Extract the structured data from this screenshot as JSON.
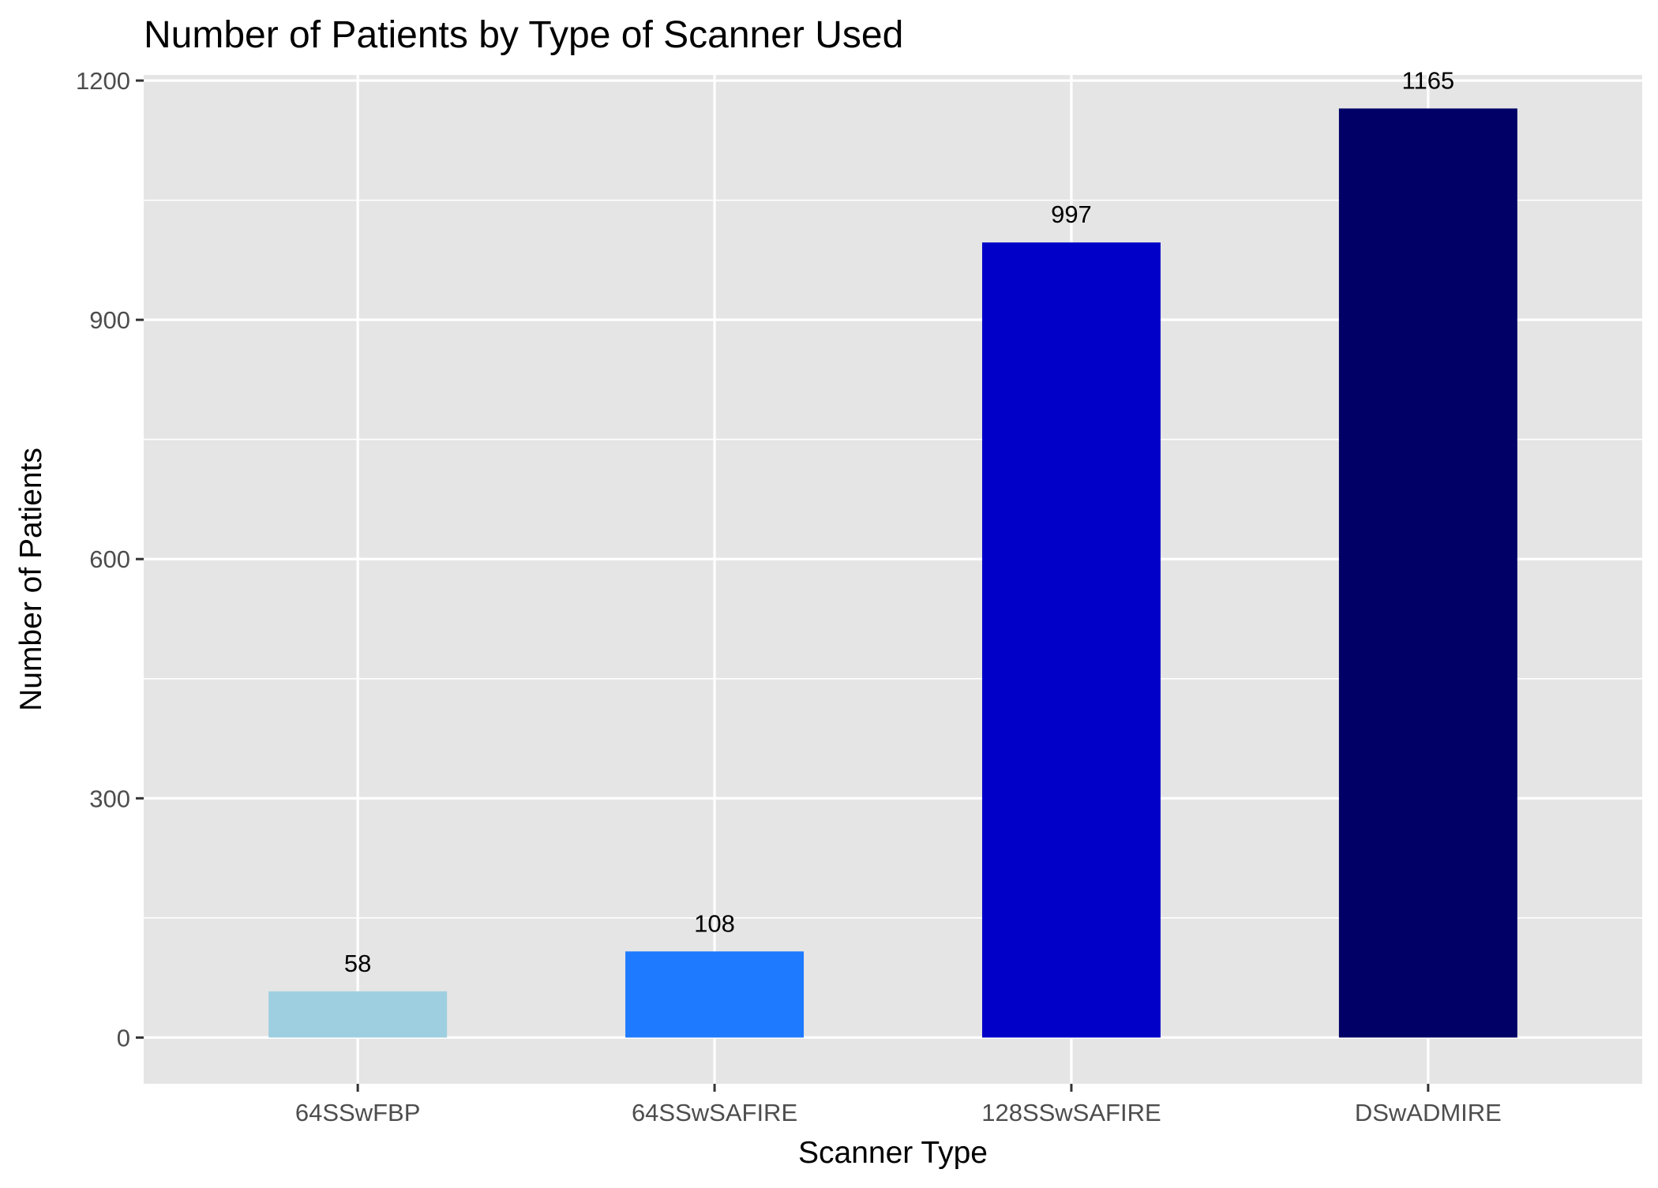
{
  "chart_data": {
    "type": "bar",
    "title": "Number of Patients by Type of Scanner Used",
    "xlabel": "Scanner Type",
    "ylabel": "Number of Patients",
    "categories": [
      "64SSwFBP",
      "64SSwSAFIRE",
      "128SSwSAFIRE",
      "DSwADMIRE"
    ],
    "values": [
      58,
      108,
      997,
      1165
    ],
    "data_labels": [
      "58",
      "108",
      "997",
      "1165"
    ],
    "colors": [
      "#9ECFE0",
      "#1E7AFF",
      "#0000C8",
      "#000066"
    ],
    "ylim": [
      -58,
      1207
    ],
    "yticks": [
      0,
      300,
      600,
      900,
      1200
    ],
    "ytick_labels": [
      "0",
      "300",
      "600",
      "900",
      "1200"
    ],
    "grid": true,
    "legend": "none",
    "panel_background": "#E5E5E5",
    "grid_color": "#FFFFFF"
  }
}
